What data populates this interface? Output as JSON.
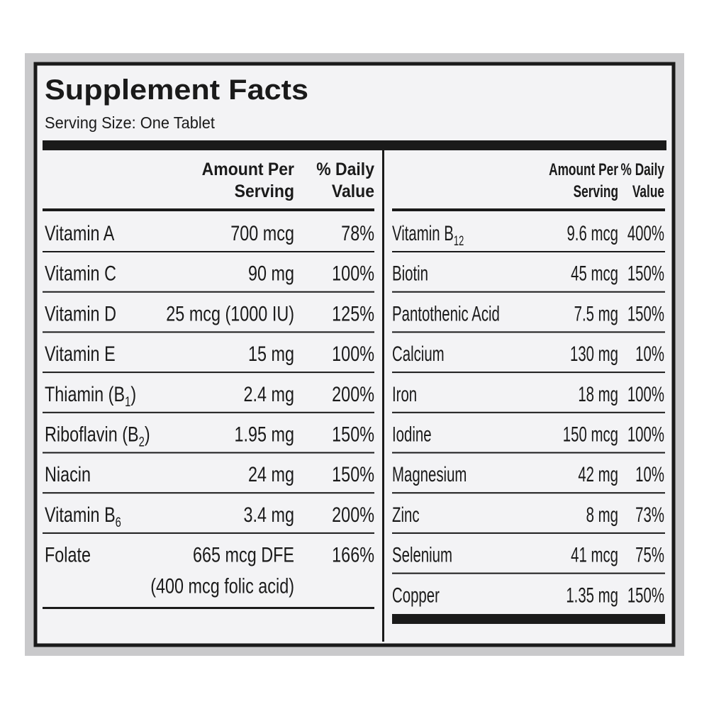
{
  "title": "Supplement Facts",
  "serving_size": "Serving Size: One Tablet",
  "left": {
    "header": {
      "amount": [
        "Amount Per",
        "Serving"
      ],
      "daily_value": [
        "% Daily",
        "Value"
      ]
    },
    "rows": [
      {
        "name": "Vitamin A",
        "amount": "700 mcg",
        "dv": "78%"
      },
      {
        "name": "Vitamin C",
        "amount": "90 mg",
        "dv": "100%"
      },
      {
        "name": "Vitamin D",
        "amount": "25 mcg (1000 IU)",
        "dv": "125%"
      },
      {
        "name": "Vitamin E",
        "amount": "15 mg",
        "dv": "100%"
      },
      {
        "name": "Thiamin (B",
        "sub": "1",
        "name_end": ")",
        "amount": "2.4 mg",
        "dv": "200%"
      },
      {
        "name": "Riboflavin (B",
        "sub": "2",
        "name_end": ")",
        "amount": "1.95 mg",
        "dv": "150%"
      },
      {
        "name": "Niacin",
        "amount": "24 mg",
        "dv": "150%"
      },
      {
        "name": "Vitamin B",
        "sub": "6",
        "amount": "3.4 mg",
        "dv": "200%"
      },
      {
        "name": "Folate",
        "amount": "665 mcg DFE",
        "amount_note": "(400 mcg folic acid)",
        "dv": "166%"
      }
    ]
  },
  "right": {
    "header": {
      "amount": [
        "Amount Per",
        "Serving"
      ],
      "daily_value": [
        "% Daily",
        "Value"
      ]
    },
    "rows": [
      {
        "name": "Vitamin B",
        "sub": "12",
        "amount": "9.6 mcg",
        "dv": "400%"
      },
      {
        "name": "Biotin",
        "amount": "45 mcg",
        "dv": "150%"
      },
      {
        "name": "Pantothenic Acid",
        "amount": "7.5 mg",
        "dv": "150%"
      },
      {
        "name": "Calcium",
        "amount": "130 mg",
        "dv": "10%"
      },
      {
        "name": "Iron",
        "amount": "18 mg",
        "dv": "100%"
      },
      {
        "name": "Iodine",
        "amount": "150 mcg",
        "dv": "100%"
      },
      {
        "name": "Magnesium",
        "amount": "42 mg",
        "dv": "10%"
      },
      {
        "name": "Zinc",
        "amount": "8 mg",
        "dv": "73%"
      },
      {
        "name": "Selenium",
        "amount": "41 mcg",
        "dv": "75%"
      },
      {
        "name": "Copper",
        "amount": "1.35 mg",
        "dv": "150%"
      }
    ]
  }
}
